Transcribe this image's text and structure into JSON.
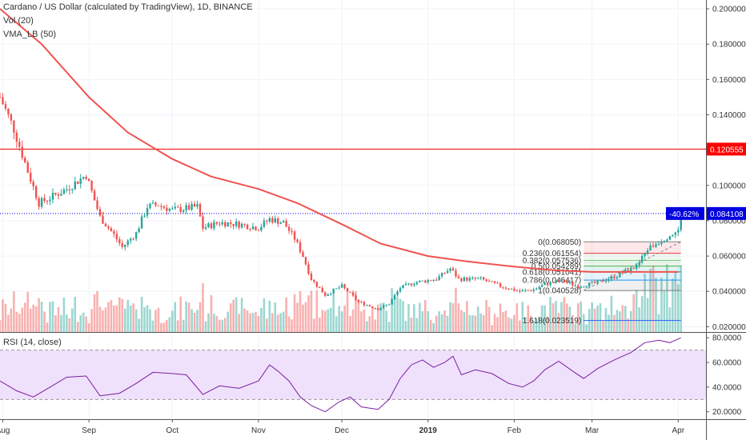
{
  "header": {
    "title": "Cardano / US Dollar (calculated by TradingView), 1D, BINANCE",
    "vol_label": "Vol (20)",
    "vma_label": "VMA_LB (50)",
    "rsi_label": "RSI (14, close)"
  },
  "colors": {
    "up": "#26a69a",
    "down": "#ef5350",
    "ma": "#ef5350",
    "resistance": "#ff0000",
    "dotted_level": "#0000ff",
    "rsi_line": "#7b1fa2",
    "rsi_fill": "#efe1fb",
    "price_badge": "#0000e0"
  },
  "chart_data": [
    {
      "type": "candlestick",
      "title": "Cardano / US Dollar (calculated by TradingView), 1D, BINANCE",
      "y_axis_ticks": [
        "0.200000",
        "0.180000",
        "0.160000",
        "0.140000",
        "0.120000",
        "0.100000",
        "0.080000",
        "0.060000",
        "0.040000",
        "0.020000"
      ],
      "y_range": [
        0.017,
        0.205
      ],
      "x_axis_ticks": [
        "Aug",
        "Sep",
        "Oct",
        "Nov",
        "Dec",
        "2019",
        "Feb",
        "Mar",
        "Apr"
      ],
      "x_range": [
        "2018-07-31",
        "2019-04-11"
      ],
      "close_path": [
        [
          "2018-07-31",
          0.15
        ],
        [
          "2018-08-05",
          0.132
        ],
        [
          "2018-08-10",
          0.108
        ],
        [
          "2018-08-14",
          0.09
        ],
        [
          "2018-08-18",
          0.093
        ],
        [
          "2018-08-24",
          0.098
        ],
        [
          "2018-08-31",
          0.106
        ],
        [
          "2018-09-05",
          0.082
        ],
        [
          "2018-09-10",
          0.072
        ],
        [
          "2018-09-13",
          0.065
        ],
        [
          "2018-09-18",
          0.073
        ],
        [
          "2018-09-22",
          0.088
        ],
        [
          "2018-09-26",
          0.089
        ],
        [
          "2018-10-01",
          0.086
        ],
        [
          "2018-10-06",
          0.087
        ],
        [
          "2018-10-10",
          0.088
        ],
        [
          "2018-10-12",
          0.076
        ],
        [
          "2018-10-18",
          0.079
        ],
        [
          "2018-10-25",
          0.078
        ],
        [
          "2018-11-01",
          0.076
        ],
        [
          "2018-11-05",
          0.081
        ],
        [
          "2018-11-10",
          0.079
        ],
        [
          "2018-11-14",
          0.07
        ],
        [
          "2018-11-17",
          0.06
        ],
        [
          "2018-11-20",
          0.047
        ],
        [
          "2018-11-25",
          0.038
        ],
        [
          "2018-12-01",
          0.043
        ],
        [
          "2018-12-07",
          0.034
        ],
        [
          "2018-12-14",
          0.03
        ],
        [
          "2018-12-18",
          0.033
        ],
        [
          "2018-12-22",
          0.042
        ],
        [
          "2018-12-27",
          0.045
        ],
        [
          "2019-01-04",
          0.047
        ],
        [
          "2019-01-09",
          0.053
        ],
        [
          "2019-01-12",
          0.047
        ],
        [
          "2019-01-20",
          0.047
        ],
        [
          "2019-01-27",
          0.043
        ],
        [
          "2019-02-03",
          0.04
        ],
        [
          "2019-02-08",
          0.041
        ],
        [
          "2019-02-12",
          0.044
        ],
        [
          "2019-02-18",
          0.046
        ],
        [
          "2019-02-24",
          0.043
        ],
        [
          "2019-03-03",
          0.045
        ],
        [
          "2019-03-10",
          0.049
        ],
        [
          "2019-03-17",
          0.054
        ],
        [
          "2019-03-21",
          0.064
        ],
        [
          "2019-03-25",
          0.068
        ],
        [
          "2019-03-29",
          0.072
        ],
        [
          "2019-04-01",
          0.074
        ],
        [
          "2019-04-02",
          0.084108
        ]
      ],
      "series": [
        {
          "name": "VMA_LB (50)",
          "points": [
            [
              "2018-07-31",
              0.2
            ],
            [
              "2018-08-15",
              0.18
            ],
            [
              "2018-09-01",
              0.15
            ],
            [
              "2018-09-15",
              0.13
            ],
            [
              "2018-10-01",
              0.115
            ],
            [
              "2018-10-15",
              0.105
            ],
            [
              "2018-11-01",
              0.098
            ],
            [
              "2018-11-15",
              0.09
            ],
            [
              "2018-12-01",
              0.078
            ],
            [
              "2018-12-15",
              0.067
            ],
            [
              "2019-01-01",
              0.06
            ],
            [
              "2019-01-15",
              0.057
            ],
            [
              "2019-02-01",
              0.054
            ],
            [
              "2019-02-15",
              0.052
            ],
            [
              "2019-03-01",
              0.051
            ],
            [
              "2019-03-15",
              0.051
            ],
            [
              "2019-04-01",
              0.051
            ]
          ]
        }
      ],
      "horizontal_lines": [
        {
          "value": 0.120555,
          "label": "0.120555",
          "style": "solid"
        },
        {
          "value": 0.084108,
          "label": "0.084108",
          "style": "dotted"
        }
      ],
      "price_badge": {
        "label": "0.084108",
        "change": "-40.62%"
      },
      "fibonacci": {
        "from_date": "2019-02-26",
        "to_date": "2019-04-02",
        "levels": [
          {
            "ratio": "0",
            "value": 0.06805,
            "label": "0(0.068050)",
            "color": "#808080"
          },
          {
            "ratio": "0.236",
            "value": 0.061554,
            "label": "0.236(0.061554)",
            "color": "#f23645"
          },
          {
            "ratio": "0.382",
            "value": 0.057536,
            "label": "0.382(0.057536)",
            "color": "#81c784"
          },
          {
            "ratio": "0.5",
            "value": 0.054289,
            "label": "0.5(0.054289)",
            "color": "#4caf50"
          },
          {
            "ratio": "0.618",
            "value": 0.051041,
            "label": "0.618(0.051041)",
            "color": "#089981"
          },
          {
            "ratio": "0.786",
            "value": 0.046417,
            "label": "0.786(0.046417)",
            "color": "#2196f3"
          },
          {
            "ratio": "1",
            "value": 0.040528,
            "label": "1(0.040528)",
            "color": "#808080"
          },
          {
            "ratio": "1.618",
            "value": 0.023519,
            "label": "1.618(0.023519)",
            "color": "#2962ff"
          }
        ]
      }
    },
    {
      "type": "area",
      "title": "RSI (14, close)",
      "y_axis_ticks": [
        "80.0000",
        "60.0000",
        "40.0000",
        "20.0000"
      ],
      "y_range": [
        14,
        84
      ],
      "bands": [
        30,
        70
      ],
      "points": [
        [
          "2018-07-31",
          45
        ],
        [
          "2018-08-06",
          37
        ],
        [
          "2018-08-12",
          32
        ],
        [
          "2018-08-18",
          40
        ],
        [
          "2018-08-24",
          48
        ],
        [
          "2018-08-31",
          49
        ],
        [
          "2018-09-05",
          33
        ],
        [
          "2018-09-12",
          35
        ],
        [
          "2018-09-18",
          43
        ],
        [
          "2018-09-24",
          52
        ],
        [
          "2018-10-01",
          51
        ],
        [
          "2018-10-06",
          50
        ],
        [
          "2018-10-12",
          34
        ],
        [
          "2018-10-18",
          41
        ],
        [
          "2018-10-25",
          39
        ],
        [
          "2018-11-01",
          45
        ],
        [
          "2018-11-05",
          58
        ],
        [
          "2018-11-08",
          53
        ],
        [
          "2018-11-12",
          45
        ],
        [
          "2018-11-16",
          32
        ],
        [
          "2018-11-20",
          25
        ],
        [
          "2018-11-25",
          20
        ],
        [
          "2018-11-30",
          28
        ],
        [
          "2018-12-04",
          32
        ],
        [
          "2018-12-08",
          24
        ],
        [
          "2018-12-14",
          22
        ],
        [
          "2018-12-18",
          30
        ],
        [
          "2018-12-22",
          47
        ],
        [
          "2018-12-26",
          58
        ],
        [
          "2018-12-30",
          62
        ],
        [
          "2019-01-03",
          56
        ],
        [
          "2019-01-07",
          60
        ],
        [
          "2019-01-10",
          65
        ],
        [
          "2019-01-13",
          50
        ],
        [
          "2019-01-18",
          54
        ],
        [
          "2019-01-24",
          51
        ],
        [
          "2019-01-30",
          43
        ],
        [
          "2019-02-04",
          40
        ],
        [
          "2019-02-08",
          45
        ],
        [
          "2019-02-12",
          54
        ],
        [
          "2019-02-17",
          61
        ],
        [
          "2019-02-22",
          53
        ],
        [
          "2019-02-26",
          47
        ],
        [
          "2019-03-03",
          55
        ],
        [
          "2019-03-09",
          62
        ],
        [
          "2019-03-15",
          68
        ],
        [
          "2019-03-20",
          76
        ],
        [
          "2019-03-25",
          78
        ],
        [
          "2019-03-29",
          76
        ],
        [
          "2019-04-02",
          80
        ]
      ]
    }
  ]
}
